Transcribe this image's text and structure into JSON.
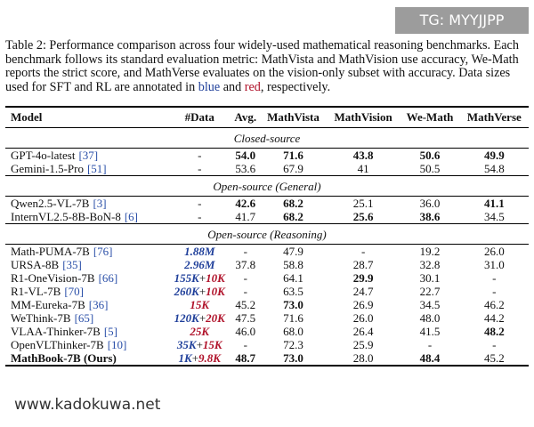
{
  "watermark_top": "TG: MYYJJPP",
  "watermark_bottom": "www.kadokuwa.net",
  "caption": {
    "before": "Table 2: Performance comparison across four widely-used mathematical reasoning benchmarks. Each benchmark follows its standard evaluation metric: MathVista and MathVision use accuracy, We-Math reports the strict score, and MathVerse evaluates on the vision-only subset with accuracy. Data sizes used for SFT and RL are annotated in ",
    "blue": "blue",
    "mid": " and ",
    "red": "red",
    "after": ", respectively."
  },
  "table": {
    "columns": [
      "Model",
      "#Data",
      "Avg.",
      "MathVista",
      "MathVision",
      "We-Math",
      "MathVerse"
    ],
    "sections": [
      {
        "title": "Closed-source",
        "rows": [
          {
            "model": "GPT-4o-latest",
            "ref": "[37]",
            "data": [
              {
                "text": "-"
              }
            ],
            "cells": [
              "54.0",
              "71.6",
              "43.8",
              "50.6",
              "49.9"
            ],
            "bold": [
              0,
              1,
              2,
              3,
              4
            ]
          },
          {
            "model": "Gemini-1.5-Pro",
            "ref": "[51]",
            "data": [
              {
                "text": "-"
              }
            ],
            "cells": [
              "53.6",
              "67.9",
              "41",
              "50.5",
              "54.8"
            ],
            "bold": []
          }
        ]
      },
      {
        "title": "Open-source (General)",
        "rows": [
          {
            "model": "Qwen2.5-VL-7B",
            "ref": "[3]",
            "data": [
              {
                "text": "-"
              }
            ],
            "cells": [
              "42.6",
              "68.2",
              "25.1",
              "36.0",
              "41.1"
            ],
            "bold": [
              0,
              1,
              4
            ]
          },
          {
            "model": "InternVL2.5-8B-BoN-8",
            "ref": "[6]",
            "data": [
              {
                "text": "-"
              }
            ],
            "cells": [
              "41.7",
              "68.2",
              "25.6",
              "38.6",
              "34.5"
            ],
            "bold": [
              1,
              2,
              3
            ]
          }
        ]
      },
      {
        "title": "Open-source (Reasoning)",
        "rows": [
          {
            "model": "Math-PUMA-7B",
            "ref": "[76]",
            "data": [
              {
                "text": "1.88M",
                "color": "blue"
              }
            ],
            "cells": [
              "-",
              "47.9",
              "-",
              "19.2",
              "26.0"
            ],
            "bold": []
          },
          {
            "model": "URSA-8B",
            "ref": "[35]",
            "data": [
              {
                "text": "2.96M",
                "color": "blue"
              }
            ],
            "cells": [
              "37.8",
              "58.8",
              "28.7",
              "32.8",
              "31.0"
            ],
            "bold": []
          },
          {
            "model": "R1-OneVision-7B",
            "ref": "[66]",
            "data": [
              {
                "text": "155K",
                "color": "blue"
              },
              {
                "text": "+"
              },
              {
                "text": "10K",
                "color": "red"
              }
            ],
            "cells": [
              "-",
              "64.1",
              "29.9",
              "30.1",
              "-"
            ],
            "bold": [
              2
            ]
          },
          {
            "model": "R1-VL-7B",
            "ref": "[70]",
            "data": [
              {
                "text": "260K",
                "color": "blue"
              },
              {
                "text": "+"
              },
              {
                "text": "10K",
                "color": "red"
              }
            ],
            "cells": [
              "-",
              "63.5",
              "24.7",
              "22.7",
              "-"
            ],
            "bold": []
          },
          {
            "model": "MM-Eureka-7B",
            "ref": "[36]",
            "data": [
              {
                "text": "15K",
                "color": "red"
              }
            ],
            "cells": [
              "45.2",
              "73.0",
              "26.9",
              "34.5",
              "46.2"
            ],
            "bold": [
              1
            ]
          },
          {
            "model": "WeThink-7B",
            "ref": "[65]",
            "data": [
              {
                "text": "120K",
                "color": "blue"
              },
              {
                "text": "+"
              },
              {
                "text": "20K",
                "color": "red"
              }
            ],
            "cells": [
              "47.5",
              "71.6",
              "26.0",
              "48.0",
              "44.2"
            ],
            "bold": []
          },
          {
            "model": "VLAA-Thinker-7B",
            "ref": "[5]",
            "data": [
              {
                "text": "25K",
                "color": "red"
              }
            ],
            "cells": [
              "46.0",
              "68.0",
              "26.4",
              "41.5",
              "48.2"
            ],
            "bold": [
              4
            ]
          },
          {
            "model": "OpenVLThinker-7B",
            "ref": "[10]",
            "data": [
              {
                "text": "35K",
                "color": "blue"
              },
              {
                "text": "+"
              },
              {
                "text": "15K",
                "color": "red"
              }
            ],
            "cells": [
              "-",
              "72.3",
              "25.9",
              "-",
              "-"
            ],
            "bold": []
          },
          {
            "model": "MathBook-7B (Ours)",
            "data": [
              {
                "text": "1K",
                "color": "blue"
              },
              {
                "text": "+"
              },
              {
                "text": "9.8K",
                "color": "red"
              }
            ],
            "cells": [
              "48.7",
              "73.0",
              "28.0",
              "48.4",
              "45.2"
            ],
            "bold": [
              0,
              1,
              3
            ],
            "model_bold": true
          }
        ]
      }
    ]
  }
}
